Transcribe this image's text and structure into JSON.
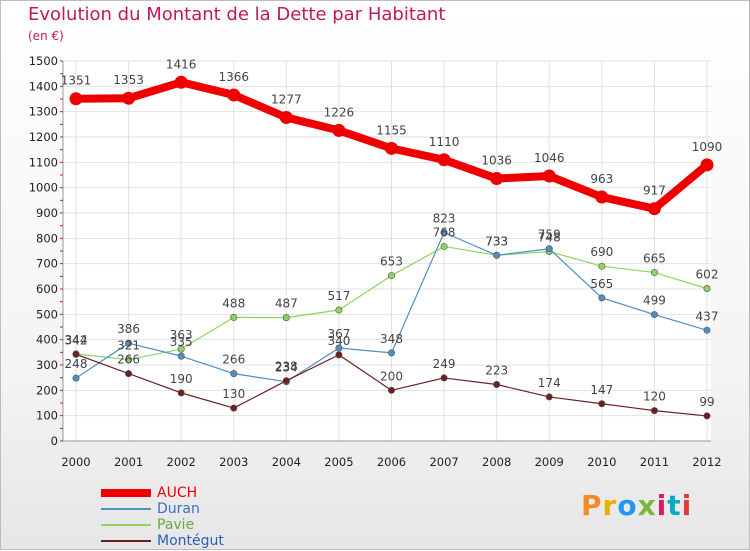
{
  "title": "Evolution du Montant de la Dette par Habitant",
  "subtitle": "(en €)",
  "logo": {
    "letters": [
      "P",
      "r",
      "o",
      "x",
      "i",
      "t",
      "i"
    ],
    "colors": [
      "#f28c28",
      "#e8b100",
      "#2196f3",
      "#7cb342",
      "#d81b60",
      "#00acc1",
      "#e53935"
    ]
  },
  "chart_data": {
    "type": "line",
    "title": "Evolution du Montant de la Dette par Habitant",
    "subtitle": "(en €)",
    "xlabel": "",
    "ylabel": "",
    "x": [
      "2000",
      "2001",
      "2002",
      "2003",
      "2004",
      "2005",
      "2006",
      "2007",
      "2008",
      "2009",
      "2010",
      "2011",
      "2012"
    ],
    "ylim": [
      0,
      1500
    ],
    "yticks": [
      "0",
      "100",
      "200",
      "300",
      "400",
      "500",
      "600",
      "700",
      "800",
      "900",
      "1000",
      "1100",
      "1200",
      "1300",
      "1400",
      "1500"
    ],
    "grid": true,
    "legend_position": "bottom-left",
    "series": [
      {
        "name": "AUCH",
        "color": "#ee0000",
        "values": [
          1351,
          1353,
          1416,
          1366,
          1277,
          1226,
          1155,
          1110,
          1036,
          1046,
          963,
          917,
          1090
        ]
      },
      {
        "name": "Duran",
        "color": "#4f8fc4",
        "values": [
          248,
          386,
          335,
          266,
          234,
          367,
          348,
          823,
          733,
          759,
          565,
          499,
          437
        ]
      },
      {
        "name": "Pavie",
        "color": "#8ed460",
        "values": [
          344,
          321,
          363,
          488,
          487,
          517,
          653,
          768,
          733,
          748,
          690,
          665,
          602
        ]
      },
      {
        "name": "Montégut",
        "color": "#6b1f22",
        "values": [
          342,
          266,
          190,
          130,
          238,
          340,
          200,
          249,
          223,
          174,
          147,
          120,
          99
        ]
      }
    ]
  }
}
